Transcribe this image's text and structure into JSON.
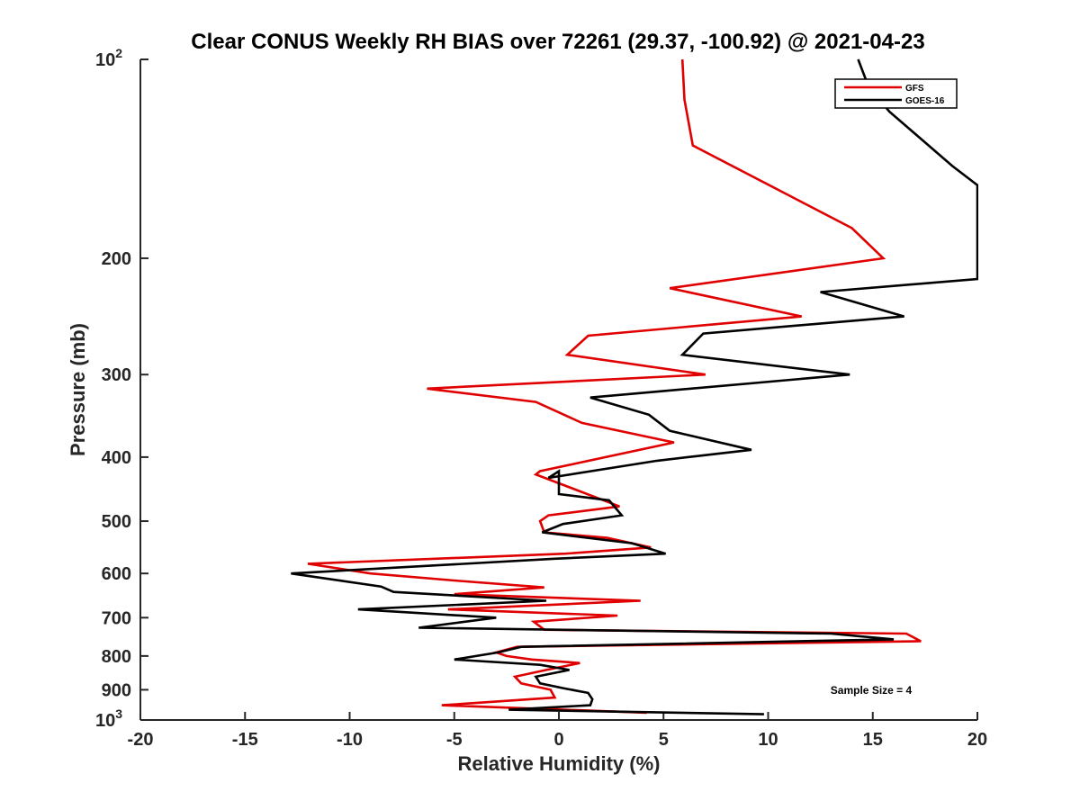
{
  "chart_data": {
    "type": "line",
    "title": "Clear CONUS Weekly RH BIAS over 72261 (29.37, -100.92) @ 2021-04-23",
    "xlabel": "Relative Humidity (%)",
    "ylabel": "Pressure (mb)",
    "xlim": [
      -20,
      20
    ],
    "ylim": [
      100,
      1000
    ],
    "y_scale": "log",
    "y_reversed": true,
    "x_ticks": [
      "-20",
      "-15",
      "-10",
      "-5",
      "0",
      "5",
      "10",
      "15",
      "20"
    ],
    "y_ticks": [
      {
        "value": 100,
        "base": "10",
        "exp": "2"
      },
      {
        "value": 200,
        "label": "200"
      },
      {
        "value": 300,
        "label": "300"
      },
      {
        "value": 400,
        "label": "400"
      },
      {
        "value": 500,
        "label": "500"
      },
      {
        "value": 600,
        "label": "600"
      },
      {
        "value": 700,
        "label": "700"
      },
      {
        "value": 800,
        "label": "800"
      },
      {
        "value": 900,
        "label": "900"
      },
      {
        "value": 1000,
        "base": "10",
        "exp": "3"
      }
    ],
    "legend_position": "top-right",
    "grid": false,
    "annotation": "Sample Size = 4",
    "series": [
      {
        "name": "GFS",
        "color": "#e00000",
        "points": [
          [
            4.2,
            975
          ],
          [
            -5.6,
            950
          ],
          [
            -0.2,
            925
          ],
          [
            -0.4,
            900
          ],
          [
            -1.8,
            880
          ],
          [
            -2.1,
            860
          ],
          [
            -0.6,
            840
          ],
          [
            1.0,
            820
          ],
          [
            -1.3,
            810
          ],
          [
            -2.5,
            800
          ],
          [
            -3.0,
            790
          ],
          [
            -2.0,
            775
          ],
          [
            17.3,
            760
          ],
          [
            16.6,
            740
          ],
          [
            -0.7,
            730
          ],
          [
            -1.2,
            710
          ],
          [
            2.8,
            695
          ],
          [
            -5.3,
            680
          ],
          [
            3.9,
            660
          ],
          [
            -5.0,
            645
          ],
          [
            -0.7,
            630
          ],
          [
            -5.0,
            615
          ],
          [
            -9.0,
            600
          ],
          [
            -12.0,
            580
          ],
          [
            0.3,
            560
          ],
          [
            4.4,
            548
          ],
          [
            2.3,
            530
          ],
          [
            -0.7,
            520
          ],
          [
            -0.9,
            500
          ],
          [
            -0.5,
            490
          ],
          [
            2.9,
            475
          ],
          [
            -1.1,
            425
          ],
          [
            -0.9,
            420
          ],
          [
            5.5,
            380
          ],
          [
            1.1,
            355
          ],
          [
            -1.1,
            330
          ],
          [
            -6.3,
            315
          ],
          [
            7.0,
            300
          ],
          [
            0.4,
            280
          ],
          [
            1.4,
            262
          ],
          [
            11.6,
            245
          ],
          [
            5.3,
            222
          ],
          [
            15.5,
            200
          ],
          [
            14.0,
            180
          ],
          [
            6.4,
            135
          ],
          [
            6.0,
            115
          ],
          [
            5.9,
            100
          ]
        ]
      },
      {
        "name": "GOES-16",
        "color": "#000000",
        "points": [
          [
            9.8,
            980
          ],
          [
            -2.4,
            965
          ],
          [
            1.5,
            950
          ],
          [
            1.6,
            930
          ],
          [
            1.4,
            910
          ],
          [
            0.2,
            895
          ],
          [
            -0.9,
            880
          ],
          [
            -1.1,
            860
          ],
          [
            0.5,
            840
          ],
          [
            -0.9,
            825
          ],
          [
            -5.0,
            810
          ],
          [
            -2.9,
            790
          ],
          [
            -1.8,
            775
          ],
          [
            16.0,
            755
          ],
          [
            13.0,
            740
          ],
          [
            -6.7,
            725
          ],
          [
            -3.0,
            700
          ],
          [
            -9.6,
            680
          ],
          [
            -0.6,
            660
          ],
          [
            -7.9,
            640
          ],
          [
            -8.5,
            628
          ],
          [
            -12.8,
            600
          ],
          [
            -0.2,
            570
          ],
          [
            5.1,
            560
          ],
          [
            3.5,
            540
          ],
          [
            -0.8,
            520
          ],
          [
            0.2,
            505
          ],
          [
            3.0,
            490
          ],
          [
            2.4,
            465
          ],
          [
            0.0,
            455
          ],
          [
            0.0,
            420
          ],
          [
            -0.5,
            430
          ],
          [
            4.7,
            405
          ],
          [
            9.2,
            390
          ],
          [
            5.3,
            365
          ],
          [
            4.3,
            345
          ],
          [
            1.5,
            325
          ],
          [
            13.9,
            300
          ],
          [
            5.9,
            280
          ],
          [
            6.9,
            260
          ],
          [
            16.5,
            245
          ],
          [
            12.5,
            225
          ],
          [
            20.0,
            215
          ],
          [
            20.0,
            155
          ],
          [
            18.8,
            145
          ],
          [
            15.8,
            120
          ],
          [
            14.8,
            110
          ],
          [
            14.3,
            100
          ]
        ]
      }
    ]
  }
}
